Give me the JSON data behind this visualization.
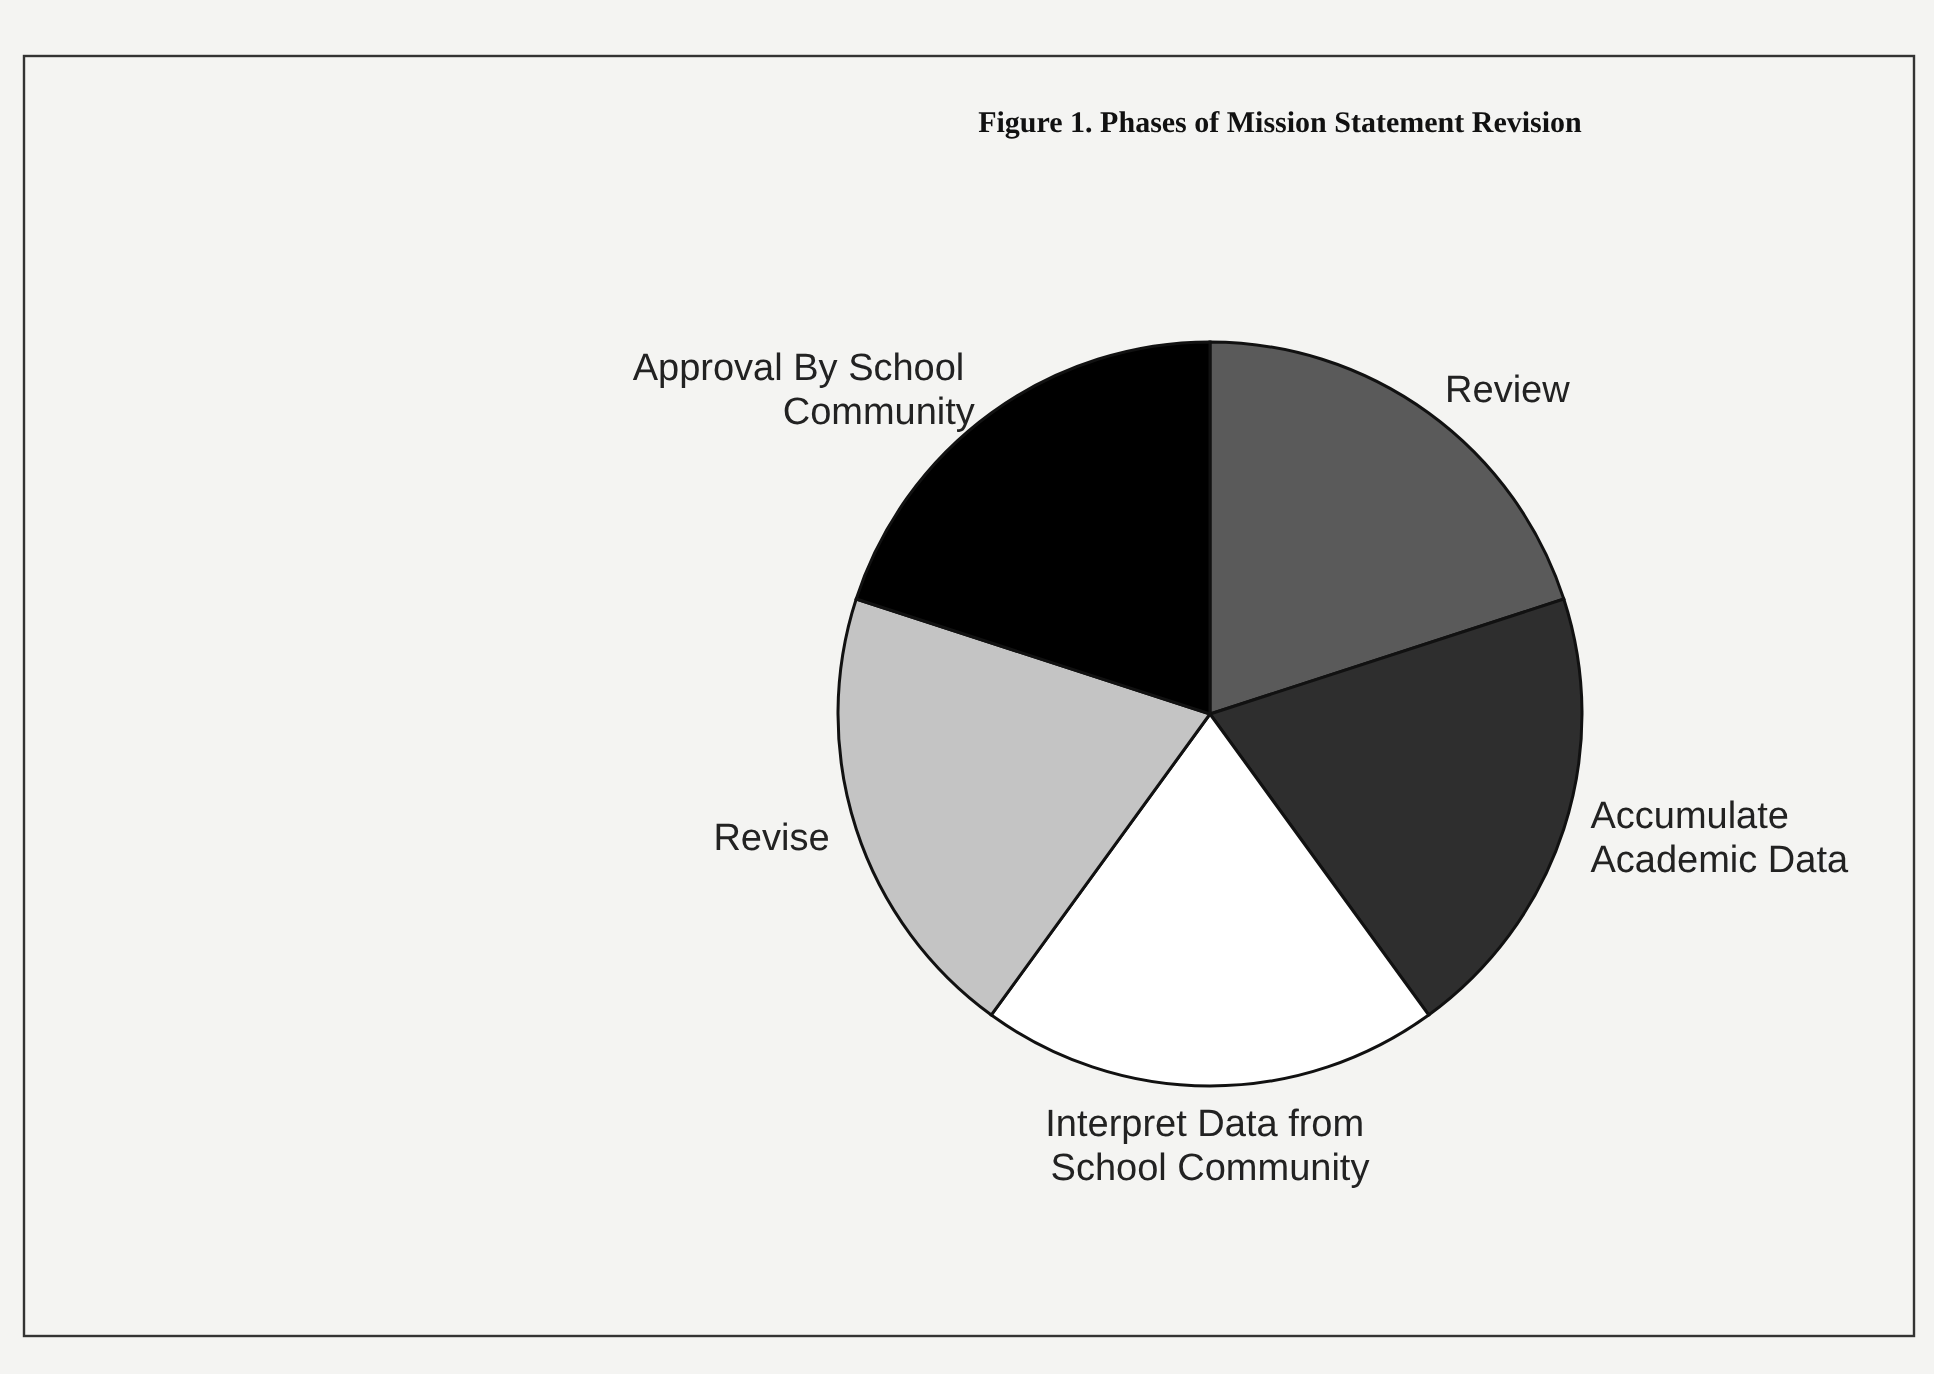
{
  "chart_data": {
    "type": "pie",
    "title": "Figure 1.  Phases of Mission Statement Revision",
    "categories": [
      "Review",
      "Accumulate\nAcademic Data",
      "Interpret Data from\nSchool Community",
      "Revise",
      "Approval By School\nCommunity"
    ],
    "values": [
      20,
      20,
      20,
      20,
      20
    ],
    "colors": [
      "#5a5a5a",
      "#2e2e2e",
      "#ffffff",
      "#c4c4c4",
      "#000000"
    ]
  }
}
